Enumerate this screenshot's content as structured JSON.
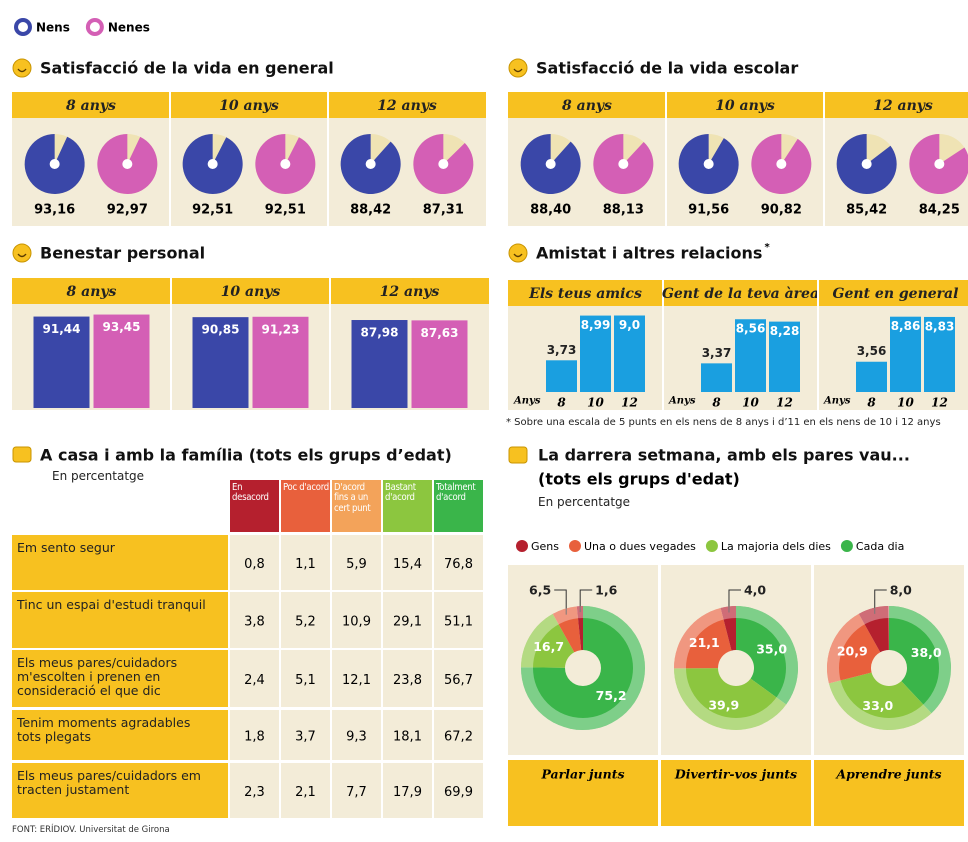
{
  "chart_data": [
    {
      "type": "pie",
      "title": "Satisfacció de la vida en general",
      "categories": [
        "8 anys",
        "10 anys",
        "12 anys"
      ],
      "rest_color": "#efe3b4",
      "series": [
        {
          "name": "Nens",
          "color": "#3a47a8",
          "values": [
            93.16,
            92.51,
            88.42
          ],
          "value_labels": [
            "93,16",
            "92,51",
            "88,42"
          ]
        },
        {
          "name": "Nenes",
          "color": "#d45fb5",
          "values": [
            92.97,
            92.51,
            87.31
          ],
          "value_labels": [
            "92,97",
            "92,51",
            "87,31"
          ]
        }
      ]
    },
    {
      "type": "pie",
      "title": "Satisfacció de la vida escolar",
      "categories": [
        "8 anys",
        "10 anys",
        "12 anys"
      ],
      "rest_color": "#efe3b4",
      "series": [
        {
          "color": "#3a47a8",
          "values": [
            88.4,
            91.56,
            85.42
          ],
          "value_labels": [
            "88,40",
            "91,56",
            "85,42"
          ]
        },
        {
          "color": "#d45fb5",
          "values": [
            88.13,
            90.82,
            84.25
          ],
          "value_labels": [
            "88,13",
            "90,82",
            "84,25"
          ]
        }
      ]
    },
    {
      "type": "bar",
      "title": "Benestar personal",
      "categories": [
        "8 anys",
        "10 anys",
        "12 anys"
      ],
      "ylim": [
        0,
        100
      ],
      "series": [
        {
          "color": "#3a47a8",
          "values": [
            91.44,
            90.85,
            87.98
          ],
          "value_labels": [
            "91,44",
            "90,85",
            "87,98"
          ]
        },
        {
          "color": "#d45fb5",
          "values": [
            93.45,
            91.23,
            87.63
          ],
          "value_labels": [
            "93,45",
            "91,23",
            "87,63"
          ]
        }
      ]
    },
    {
      "type": "groupbar",
      "title": "Amistat i altres relacions",
      "footnote_mark": "*",
      "note": "* Sobre una escala de 5 punts en els nens de 8 anys i d’11 en els nens de 10 i 12 anys",
      "categories": [
        "Els teus amics",
        "Gent de la teva àrea",
        "Gent en general"
      ],
      "x_label": "Anys",
      "ylim": [
        0,
        10
      ],
      "series": [
        {
          "name": "8",
          "color": "#1a9fe0",
          "values": [
            3.73,
            3.37,
            3.56
          ],
          "value_labels": [
            "3,73",
            "3,37",
            "3,56"
          ]
        },
        {
          "name": "10",
          "color": "#1a9fe0",
          "values": [
            8.99,
            8.56,
            8.86
          ],
          "value_labels": [
            "8,99",
            "8,56",
            "8,86"
          ]
        },
        {
          "name": "12",
          "color": "#1a9fe0",
          "values": [
            9.0,
            8.28,
            8.83
          ],
          "value_labels": [
            "9,0",
            "8,28",
            "8,83"
          ]
        }
      ]
    },
    {
      "type": "table",
      "title": "A casa i amb la família (tots els grups d’edat)",
      "unit": "En percentatge",
      "columns": [
        {
          "name": "En desacord",
          "color": "#b5202e"
        },
        {
          "name": "Poc d'acord",
          "color": "#e8603c"
        },
        {
          "name": "D'acord fins a un cert punt",
          "color": "#f3a35a"
        },
        {
          "name": "Bastant d'acord",
          "color": "#8cc63f"
        },
        {
          "name": "Totalment d'acord",
          "color": "#3ab54a"
        }
      ],
      "rows": [
        {
          "label": "Em sento segur",
          "values": [
            0.8,
            1.1,
            5.9,
            15.4,
            76.8
          ],
          "value_labels": [
            "0,8",
            "1,1",
            "5,9",
            "15,4",
            "76,8"
          ]
        },
        {
          "label": "Tinc un espai d'estudi tranquil",
          "values": [
            3.8,
            5.2,
            10.9,
            29.1,
            51.1
          ],
          "value_labels": [
            "3,8",
            "5,2",
            "10,9",
            "29,1",
            "51,1"
          ]
        },
        {
          "label": "Els meus pares/cuidadors m'escolten i prenen en consideració el que dic",
          "values": [
            2.4,
            5.1,
            12.1,
            23.8,
            56.7
          ],
          "value_labels": [
            "2,4",
            "5,1",
            "12,1",
            "23,8",
            "56,7"
          ]
        },
        {
          "label": "Tenim moments agradables tots plegats",
          "values": [
            1.8,
            3.7,
            9.3,
            18.1,
            67.2
          ],
          "value_labels": [
            "1,8",
            "3,7",
            "9,3",
            "18,1",
            "67,2"
          ]
        },
        {
          "label": "Els meus pares/cuidadors em tracten justament",
          "values": [
            2.3,
            2.1,
            7.7,
            17.9,
            69.9
          ],
          "value_labels": [
            "2,3",
            "2,1",
            "7,7",
            "17,9",
            "69,9"
          ]
        }
      ]
    },
    {
      "type": "donut",
      "title": "La darrera setmana, amb els pares vau...",
      "subtitle": "(tots els grups d'edat)",
      "unit": "En percentatge",
      "categories": [
        "Parlar junts",
        "Divertir-vos junts",
        "Aprendre junts"
      ],
      "series": [
        {
          "name": "Gens",
          "color": "#b5202e",
          "values": [
            1.6,
            4.0,
            8.0
          ],
          "value_labels": [
            "1,6",
            "4,0",
            "8,0"
          ]
        },
        {
          "name": "Una o dues vegades",
          "color": "#e8603c",
          "values": [
            6.5,
            21.1,
            20.9
          ],
          "value_labels": [
            "6,5",
            "21,1",
            "20,9"
          ]
        },
        {
          "name": "La majoria dels dies",
          "color": "#8cc63f",
          "values": [
            16.7,
            39.9,
            33.0
          ],
          "value_labels": [
            "16,7",
            "39,9",
            "33,0"
          ]
        },
        {
          "name": "Cada dia",
          "color": "#3ab54a",
          "values": [
            75.2,
            35.0,
            38.0
          ],
          "value_labels": [
            "75,2",
            "35,0",
            "38,0"
          ]
        }
      ]
    }
  ],
  "source": "FONT: ERÍDIOV. Universitat de Girona"
}
